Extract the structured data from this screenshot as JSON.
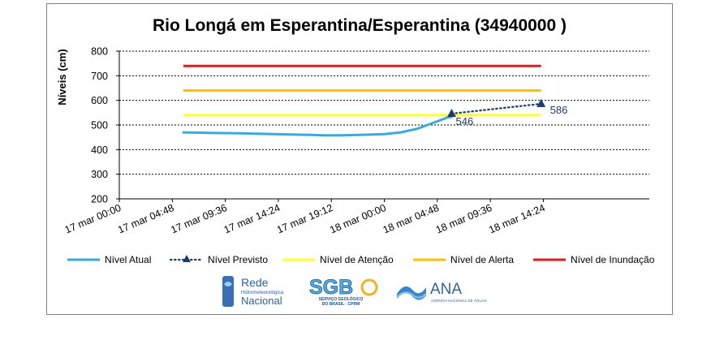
{
  "chart_data": {
    "type": "line",
    "title": "Rio Longá em Esperantina/Esperantina (34940000 )",
    "xlabel": "",
    "ylabel": "Níveis  (cm)",
    "ylim": [
      200,
      800
    ],
    "yticks": [
      "200",
      "300",
      "400",
      "500",
      "600",
      "700",
      "800"
    ],
    "x_range_hours": [
      0,
      48
    ],
    "xticks": [
      {
        "label": "17 mar 00:00",
        "h": 0
      },
      {
        "label": "17 mar 04:48",
        "h": 4.8
      },
      {
        "label": "17 mar 09:36",
        "h": 9.6
      },
      {
        "label": "17 mar 14:24",
        "h": 14.4
      },
      {
        "label": "17 mar 19:12",
        "h": 19.2
      },
      {
        "label": "18 mar 00:00",
        "h": 24
      },
      {
        "label": "18 mar 04:48",
        "h": 28.8
      },
      {
        "label": "18 mar 09:36",
        "h": 33.6
      },
      {
        "label": "18 mar 14:24",
        "h": 38.4
      }
    ],
    "grid": true,
    "legend_position": "bottom",
    "series": [
      {
        "name": "Nível Atual",
        "color": "#3aa9df",
        "style": "solid",
        "points": [
          [
            5.8,
            470
          ],
          [
            8,
            468
          ],
          [
            11,
            466
          ],
          [
            14,
            463
          ],
          [
            17,
            460
          ],
          [
            18.5,
            458
          ],
          [
            20,
            458
          ],
          [
            22,
            460
          ],
          [
            24,
            463
          ],
          [
            25.5,
            470
          ],
          [
            27,
            485
          ],
          [
            28.5,
            510
          ],
          [
            29.7,
            530
          ],
          [
            30.1,
            533
          ]
        ]
      },
      {
        "name": "Nível Previsto",
        "color": "#1f3a6e",
        "style": "dotted",
        "points": [
          [
            30.1,
            546
          ],
          [
            38.2,
            586
          ]
        ],
        "labels": [
          "546",
          "586"
        ]
      },
      {
        "name": "Nível de Atenção",
        "color": "#ffff33",
        "style": "threshold",
        "value": 540
      },
      {
        "name": "Nível de Alerta",
        "color": "#ffbf00",
        "style": "threshold",
        "value": 640
      },
      {
        "name": "Nível de Inundação",
        "color": "#e41a1c",
        "style": "threshold",
        "value": 740
      }
    ],
    "threshold_range_hours": [
      5.8,
      38.2
    ]
  },
  "logos": {
    "rede": {
      "line1": "Rede",
      "line2": "Hidrometeorológica",
      "line3": "Nacional"
    },
    "sgb": {
      "main": "SGB",
      "sub1": "SERVIÇO GEOLÓGICO",
      "sub2": "DO BRASIL - CPRM"
    },
    "ana": {
      "main": "ANA",
      "sub": "AGÊNCIA NACIONAL DE ÁGUAS"
    }
  }
}
